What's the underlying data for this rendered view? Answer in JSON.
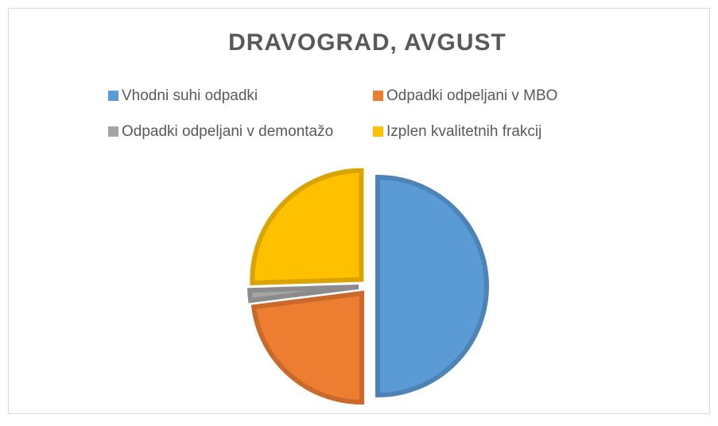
{
  "chart_data": {
    "type": "pie",
    "title": "DRAVOGRAD, AVGUST",
    "categories": [
      "Vhodni suhi odpadki",
      "Odpadki odpeljani v MBO",
      "Odpadki odpeljani v demontažo",
      "Izplen kvalitetnih frakcij"
    ],
    "values": [
      50,
      23,
      1.5,
      25.5
    ],
    "colors": [
      "#5b9bd5",
      "#ed7d31",
      "#a5a5a5",
      "#ffc000"
    ],
    "exploded": true
  }
}
